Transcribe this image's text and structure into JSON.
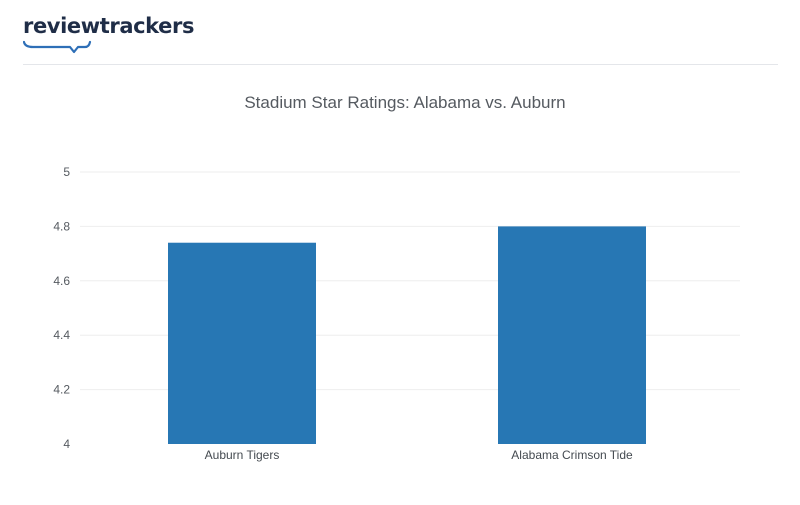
{
  "brand": {
    "logo_text": "reviewtrackers",
    "logo_color": "#1f2d47",
    "swoosh_color": "#2e6fb7"
  },
  "chart_data": {
    "type": "bar",
    "title": "Stadium Star Ratings: Alabama vs. Auburn",
    "categories": [
      "Auburn Tigers",
      "Alabama Crimson Tide"
    ],
    "values": [
      4.74,
      4.8
    ],
    "ylim": [
      4,
      5
    ],
    "yticks": [
      4,
      4.2,
      4.4,
      4.6,
      4.8,
      5
    ],
    "ytick_labels": [
      "4",
      "4.2",
      "4.4",
      "4.6",
      "4.8",
      "5"
    ],
    "xlabel": "",
    "ylabel": "",
    "grid": true,
    "bar_color": "#2777b4",
    "grid_color": "#eeeeee"
  }
}
